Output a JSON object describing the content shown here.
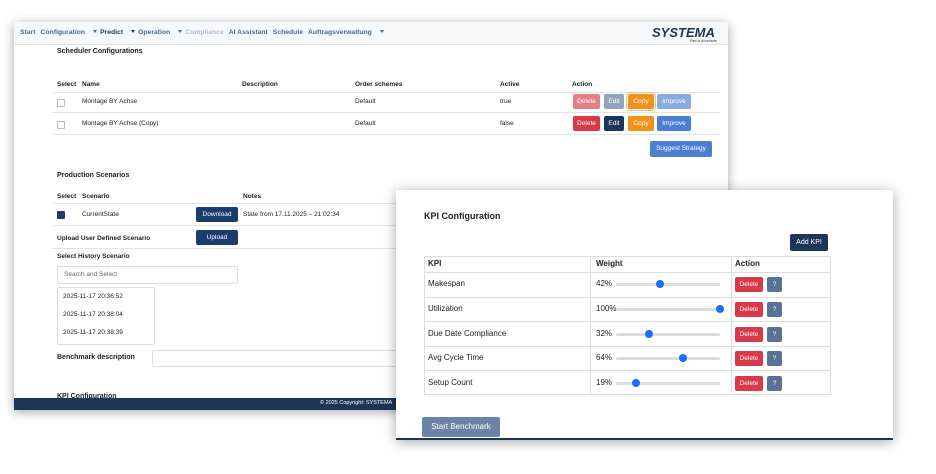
{
  "nav": {
    "items": [
      "Start",
      "Configuration",
      "Predict",
      "Operation",
      "Compliance",
      "AI Assistant",
      "Schedule",
      "Auftragsverwaltung"
    ],
    "logo": "SYSTEMA",
    "logo_sub": "Part of Accenture"
  },
  "scheduler": {
    "title": "Scheduler Configurations",
    "columns": [
      "Select",
      "Name",
      "Description",
      "Order schemes",
      "Active",
      "Action"
    ],
    "rows": [
      {
        "name": "Montage BY Achse",
        "order_scheme": "Default",
        "active": "true"
      },
      {
        "name": "Montage BY Achse (Copy)",
        "order_scheme": "Default",
        "active": "false"
      }
    ],
    "buttons": [
      "Delete",
      "Edit",
      "Copy",
      "Improve"
    ],
    "suggest": "Suggest Strategy"
  },
  "production": {
    "title": "Production Scenarios",
    "columns": [
      "Select",
      "Scenario",
      "Notes"
    ],
    "rows": [
      {
        "scenario": "CurrentState",
        "button": "Download",
        "notes": "State from 17.11.2025 – 21:02:34"
      }
    ],
    "upload_label": "Upload User Defined Scenario",
    "upload_button": "Upload",
    "history_label": "Select History Scenario",
    "search_placeholder": "Search and Select",
    "history_items": [
      "2025-11-17 20:36:52",
      "2025-11-17 20:38:04",
      "2025-11-17 20:38:39"
    ],
    "benchmark_label": "Benchmark description",
    "kpi_heading": "KPI Configuration"
  },
  "footer": "© 2025 Copyright: SYSTEMA",
  "kpi_panel": {
    "title": "KPI Configuration",
    "add_button": "Add KPI",
    "columns": [
      "KPI",
      "Weight",
      "Action"
    ],
    "rows": [
      {
        "kpi": "Makespan",
        "weight": {
          "value": 42,
          "label": "42%"
        }
      },
      {
        "kpi": "Utilization",
        "weight": {
          "value": 100,
          "label": "100%"
        }
      },
      {
        "kpi": "Due Date Compliance",
        "weight": {
          "value": 32,
          "label": "32%"
        }
      },
      {
        "kpi": "Avg Cycle Time",
        "weight": {
          "value": 64,
          "label": "64%"
        }
      },
      {
        "kpi": "Setup Count",
        "weight": {
          "value": 19,
          "label": "19%"
        }
      }
    ],
    "weight_range": [
      0,
      100
    ],
    "delete_button": "Delete",
    "help_button": "?",
    "start_button": "Start Benchmark"
  }
}
